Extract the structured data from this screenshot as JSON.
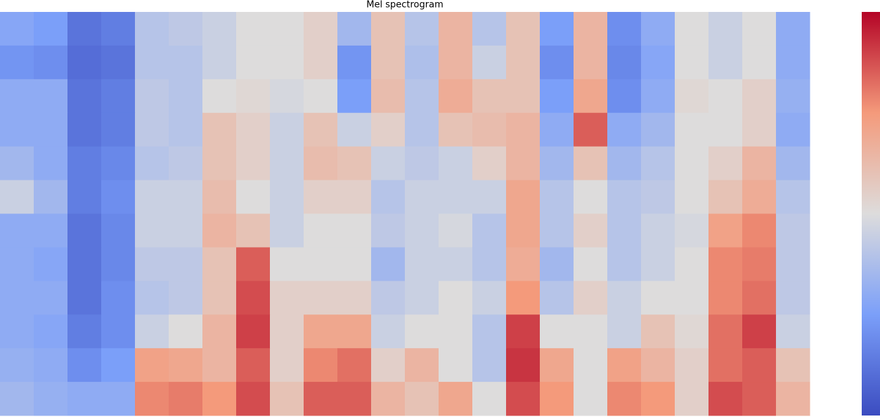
{
  "chart_data": {
    "type": "heatmap",
    "title": "Mel spectrogram",
    "vlim": [
      0,
      1
    ],
    "colormap": [
      "#3b4cc0",
      "#7b9ff9",
      "#dddcdc",
      "#f49a7b",
      "#b40426"
    ],
    "z": [
      [
        0.28,
        0.25,
        0.12,
        0.15,
        0.4,
        0.42,
        0.45,
        0.5,
        0.5,
        0.55,
        0.35,
        0.6,
        0.4,
        0.65,
        0.4,
        0.6,
        0.25,
        0.65,
        0.2,
        0.3,
        0.5,
        0.45,
        0.5,
        0.3
      ],
      [
        0.22,
        0.2,
        0.1,
        0.12,
        0.4,
        0.4,
        0.45,
        0.5,
        0.5,
        0.55,
        0.22,
        0.6,
        0.38,
        0.65,
        0.45,
        0.6,
        0.2,
        0.65,
        0.18,
        0.28,
        0.5,
        0.45,
        0.5,
        0.3
      ],
      [
        0.3,
        0.3,
        0.12,
        0.15,
        0.42,
        0.4,
        0.5,
        0.52,
        0.48,
        0.5,
        0.25,
        0.62,
        0.4,
        0.68,
        0.6,
        0.6,
        0.25,
        0.7,
        0.2,
        0.3,
        0.52,
        0.5,
        0.55,
        0.32
      ],
      [
        0.3,
        0.3,
        0.12,
        0.15,
        0.42,
        0.4,
        0.6,
        0.55,
        0.45,
        0.6,
        0.45,
        0.55,
        0.4,
        0.6,
        0.62,
        0.65,
        0.3,
        0.85,
        0.3,
        0.35,
        0.5,
        0.5,
        0.55,
        0.3
      ],
      [
        0.35,
        0.3,
        0.15,
        0.18,
        0.4,
        0.42,
        0.6,
        0.55,
        0.45,
        0.62,
        0.6,
        0.45,
        0.42,
        0.45,
        0.55,
        0.65,
        0.35,
        0.6,
        0.35,
        0.4,
        0.5,
        0.55,
        0.65,
        0.35
      ],
      [
        0.45,
        0.35,
        0.15,
        0.2,
        0.45,
        0.45,
        0.62,
        0.5,
        0.45,
        0.55,
        0.55,
        0.4,
        0.45,
        0.45,
        0.45,
        0.7,
        0.4,
        0.5,
        0.4,
        0.42,
        0.5,
        0.6,
        0.68,
        0.4
      ],
      [
        0.3,
        0.3,
        0.12,
        0.18,
        0.45,
        0.45,
        0.65,
        0.6,
        0.45,
        0.5,
        0.5,
        0.42,
        0.45,
        0.48,
        0.4,
        0.7,
        0.4,
        0.55,
        0.4,
        0.45,
        0.48,
        0.72,
        0.78,
        0.42
      ],
      [
        0.3,
        0.28,
        0.12,
        0.18,
        0.42,
        0.42,
        0.6,
        0.85,
        0.5,
        0.5,
        0.5,
        0.35,
        0.45,
        0.45,
        0.4,
        0.68,
        0.35,
        0.5,
        0.4,
        0.45,
        0.5,
        0.78,
        0.8,
        0.42
      ],
      [
        0.3,
        0.3,
        0.12,
        0.2,
        0.4,
        0.42,
        0.6,
        0.88,
        0.55,
        0.55,
        0.55,
        0.42,
        0.45,
        0.5,
        0.45,
        0.75,
        0.4,
        0.55,
        0.45,
        0.5,
        0.5,
        0.78,
        0.82,
        0.42
      ],
      [
        0.3,
        0.28,
        0.15,
        0.2,
        0.45,
        0.5,
        0.65,
        0.9,
        0.55,
        0.7,
        0.7,
        0.45,
        0.5,
        0.5,
        0.4,
        0.9,
        0.5,
        0.5,
        0.45,
        0.6,
        0.52,
        0.82,
        0.9,
        0.45
      ],
      [
        0.32,
        0.3,
        0.2,
        0.25,
        0.72,
        0.7,
        0.65,
        0.85,
        0.55,
        0.78,
        0.82,
        0.55,
        0.65,
        0.5,
        0.4,
        0.92,
        0.7,
        0.5,
        0.72,
        0.65,
        0.55,
        0.82,
        0.85,
        0.6
      ],
      [
        0.35,
        0.32,
        0.3,
        0.3,
        0.78,
        0.8,
        0.75,
        0.88,
        0.6,
        0.85,
        0.85,
        0.65,
        0.6,
        0.7,
        0.5,
        0.88,
        0.75,
        0.5,
        0.78,
        0.75,
        0.55,
        0.88,
        0.85,
        0.65
      ]
    ]
  }
}
